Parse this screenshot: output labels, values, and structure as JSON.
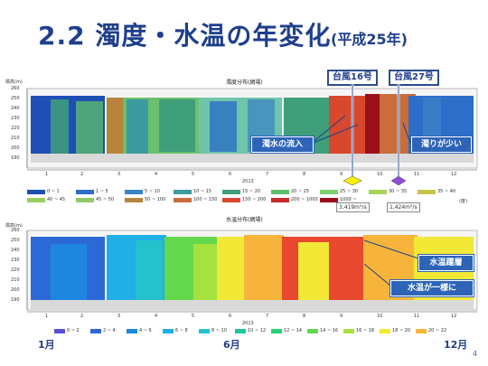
{
  "slide": {
    "title": "2.2 濁度・水温の年変化",
    "subtitle": "(平成25年)",
    "page_number": "4"
  },
  "typhoons": [
    "台風16号",
    "台風27号"
  ],
  "flow_labels": [
    "3,419m³/s",
    "1,424m³/s"
  ],
  "callouts": {
    "muddy_inflow": "濁水の流入",
    "low_turbidity": "濁りが少い",
    "stratification": "水温躍層",
    "uniform_temp": "水温が一様に"
  },
  "bottom_labels": {
    "start": "1月",
    "mid": "6月",
    "end": "12月"
  },
  "turbidity_plot": {
    "title": "濁度分布(網場)",
    "y_label": "標高(m)",
    "y_ticks": [
      "260",
      "250",
      "240",
      "230",
      "220",
      "210",
      "200",
      "190"
    ],
    "months": [
      "1",
      "2",
      "3",
      "4",
      "5",
      "6",
      "7",
      "8",
      "9",
      "10",
      "11",
      "12"
    ],
    "year": "2013",
    "legend": [
      {
        "label": "0 ~ 1",
        "color": "#1f4fb4"
      },
      {
        "label": "1 ~ 5",
        "color": "#2c6ec8"
      },
      {
        "label": "5 ~ 10",
        "color": "#3c84c6"
      },
      {
        "label": "10 ~ 15",
        "color": "#3d9a9f"
      },
      {
        "label": "15 ~ 20",
        "color": "#3f9f7a"
      },
      {
        "label": "20 ~ 25",
        "color": "#5fbf6a"
      },
      {
        "label": "25 ~ 30",
        "color": "#80d070"
      },
      {
        "label": "30 ~ 35",
        "color": "#a8d25e"
      },
      {
        "label": "35 ~ 40",
        "color": "#c8c44a"
      },
      {
        "label": "40 ~ 45",
        "color": "#97cf5d"
      },
      {
        "label": "45 ~ 50",
        "color": "#8fcb67"
      },
      {
        "label": "50 ~ 100",
        "color": "#b8843c"
      },
      {
        "label": "100 ~ 150",
        "color": "#c96d3c"
      },
      {
        "label": "150 ~ 200",
        "color": "#d8482e"
      },
      {
        "label": "200 ~ 1000",
        "color": "#c92a2a"
      },
      {
        "label": "1000 ~",
        "color": "#9a0f1a"
      }
    ],
    "unit": "(度)"
  },
  "temperature_plot": {
    "title": "水温分布(網場)",
    "y_label": "標高(m)",
    "y_ticks": [
      "260",
      "250",
      "240",
      "230",
      "220",
      "210",
      "200",
      "190"
    ],
    "months": [
      "1",
      "2",
      "3",
      "4",
      "5",
      "6",
      "7",
      "8",
      "9",
      "10",
      "11",
      "12"
    ],
    "year": "2013",
    "legend": [
      {
        "label": "0 ~ 2",
        "color": "#5a4fd6"
      },
      {
        "label": "2 ~ 4",
        "color": "#2c69d6"
      },
      {
        "label": "4 ~ 6",
        "color": "#1f86e0"
      },
      {
        "label": "6 ~ 8",
        "color": "#22aee6"
      },
      {
        "label": "8 ~ 10",
        "color": "#24c2cc"
      },
      {
        "label": "10 ~ 12",
        "color": "#21c6a1"
      },
      {
        "label": "12 ~ 14",
        "color": "#2ad07a"
      },
      {
        "label": "14 ~ 16",
        "color": "#64d84c"
      },
      {
        "label": "16 ~ 18",
        "color": "#a6e23f"
      },
      {
        "label": "18 ~ 20",
        "color": "#f2e836"
      },
      {
        "label": "20 ~ 22",
        "color": "#f6b53a"
      }
    ]
  }
}
